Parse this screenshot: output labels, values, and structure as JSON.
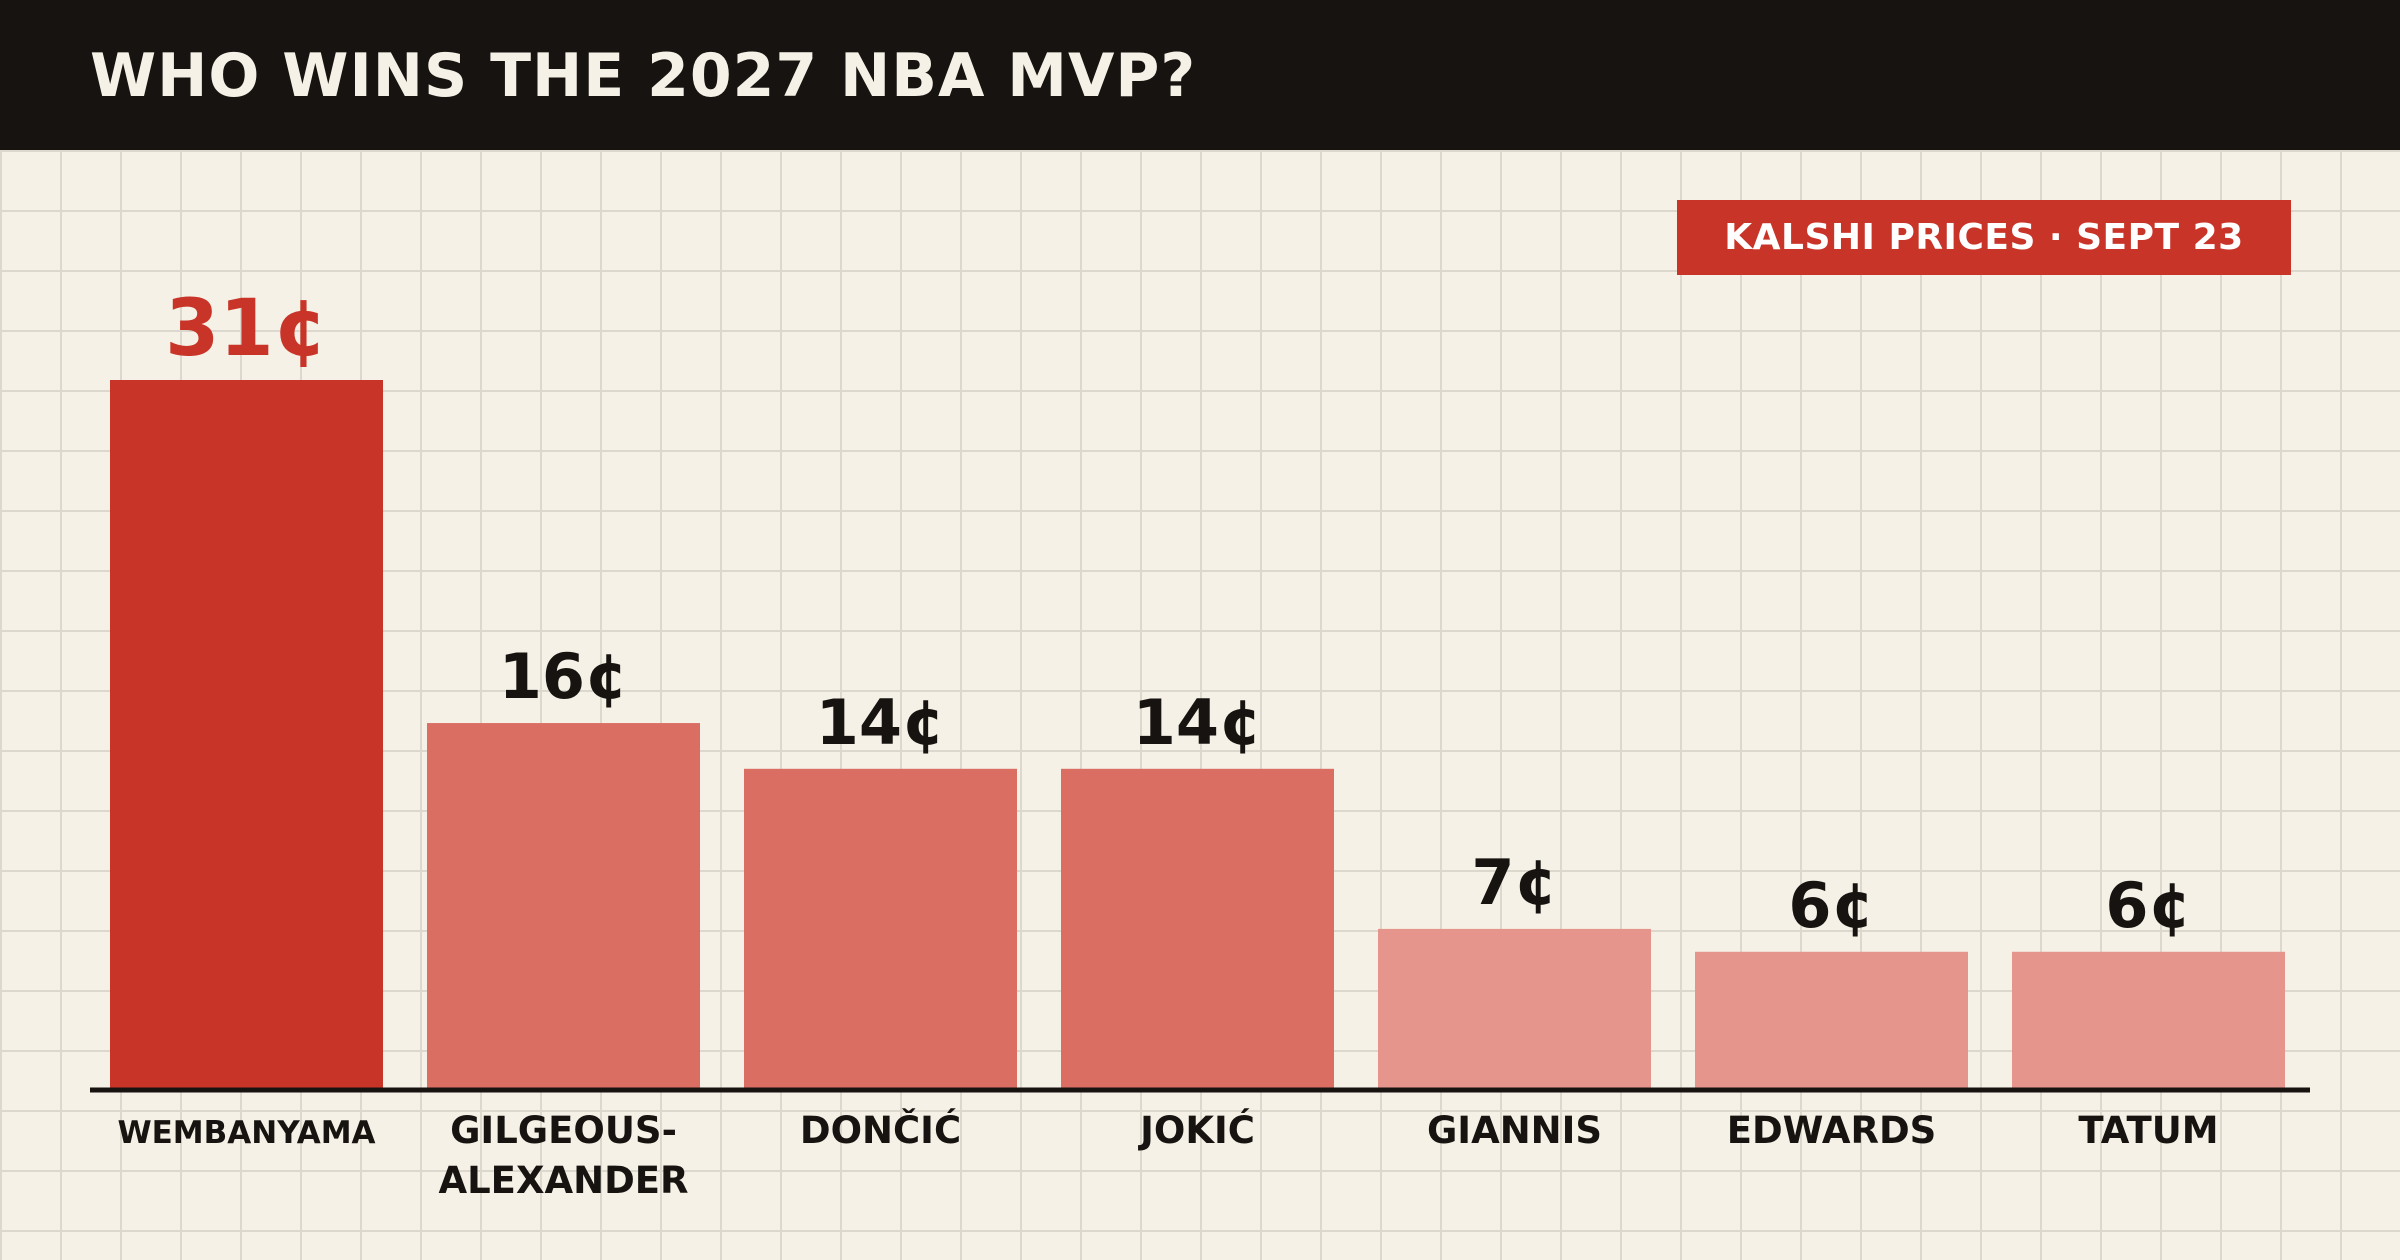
{
  "header": {
    "title": "WHO WINS THE 2027 NBA MVP?"
  },
  "badge": {
    "label": "KALSHI PRICES · SEPT 23"
  },
  "colors": {
    "header_bg": "#161310",
    "background": "#f5f1e6",
    "grid": "#dcd8cd",
    "bar_top": "#c93428",
    "bar_mid": "#db6e63",
    "bar_low": "#e6958c",
    "axis": "#161310",
    "label_highlight": "#c93428",
    "label_default": "#161310"
  },
  "chart_data": {
    "type": "bar",
    "title": "WHO WINS THE 2027 NBA MVP?",
    "xlabel": "",
    "ylabel": "",
    "unit": "¢",
    "grid": true,
    "categories": [
      [
        "WEMBANYAMA"
      ],
      [
        "GILGEOUS-",
        "ALEXANDER"
      ],
      [
        "DONČIĆ"
      ],
      [
        "JOKIĆ"
      ],
      [
        "GIANNIS"
      ],
      [
        "EDWARDS"
      ],
      [
        "TATUM"
      ]
    ],
    "values": [
      31,
      16,
      14,
      14,
      7,
      6,
      6
    ],
    "value_labels": [
      "31¢",
      "16¢",
      "14¢",
      "14¢",
      "7¢",
      "6¢",
      "6¢"
    ],
    "tiers": [
      "top",
      "mid",
      "mid",
      "mid",
      "low",
      "low",
      "low"
    ],
    "ylim": [
      0,
      31
    ]
  }
}
